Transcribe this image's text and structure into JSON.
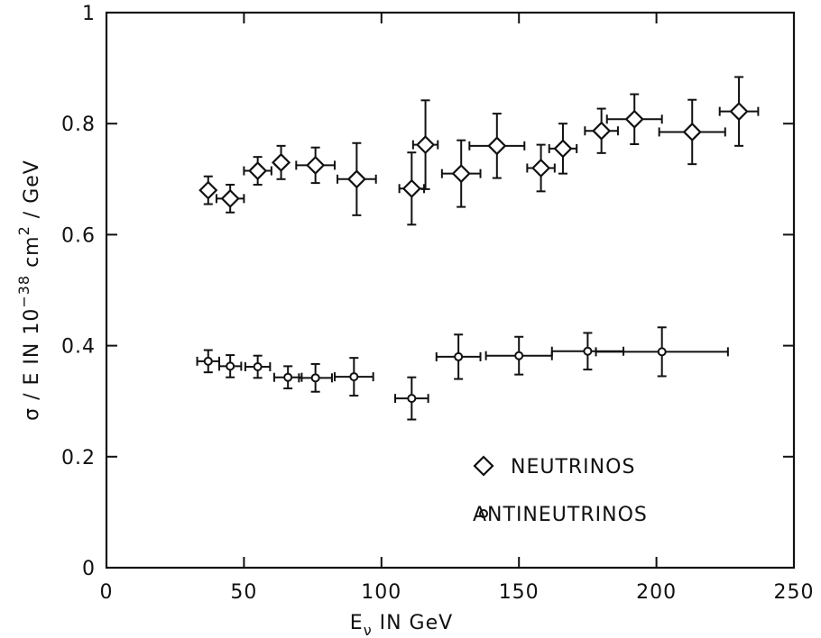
{
  "chart_data": {
    "type": "scatter",
    "title": "",
    "xlabel": "E",
    "xlabel_sub": "ν",
    "xlabel_rest": " IN GeV",
    "ylabel": "σ / E  IN  10",
    "ylabel_sup": "−38",
    "ylabel_rest": " cm",
    "ylabel_sup2": "2",
    "ylabel_tail": " / GeV",
    "xlim": [
      0,
      250
    ],
    "ylim": [
      0,
      1
    ],
    "x_ticks": [
      0,
      50,
      100,
      150,
      200,
      250
    ],
    "x_tick_labels": [
      "0",
      "50",
      "100",
      "150",
      "200",
      "250"
    ],
    "y_ticks": [
      0,
      0.2,
      0.4,
      0.6,
      0.8,
      1
    ],
    "y_tick_labels": [
      "0",
      "0.2",
      "0.4",
      "0.6",
      "0.8",
      "1"
    ],
    "grid": false,
    "legend_position": "lower-right",
    "series": [
      {
        "name": "NEUTRINOS",
        "marker": "diamond",
        "points": [
          {
            "x": 37,
            "y": 0.68,
            "xerr": 1.5,
            "yerr": 0.025
          },
          {
            "x": 45,
            "y": 0.665,
            "xerr": 5,
            "yerr": 0.025
          },
          {
            "x": 55,
            "y": 0.715,
            "xerr": 5,
            "yerr": 0.025
          },
          {
            "x": 63.5,
            "y": 0.73,
            "xerr": 1.5,
            "yerr": 0.03
          },
          {
            "x": 76,
            "y": 0.725,
            "xerr": 7,
            "yerr": 0.032
          },
          {
            "x": 91,
            "y": 0.7,
            "xerr": 7,
            "yerr": 0.065
          },
          {
            "x": 111,
            "y": 0.683,
            "xerr": 4.5,
            "yerr": 0.065
          },
          {
            "x": 116,
            "y": 0.762,
            "xerr": 4.5,
            "yerr": 0.08
          },
          {
            "x": 129,
            "y": 0.71,
            "xerr": 7,
            "yerr": 0.06
          },
          {
            "x": 142,
            "y": 0.76,
            "xerr": 10,
            "yerr": 0.058
          },
          {
            "x": 158,
            "y": 0.72,
            "xerr": 5,
            "yerr": 0.042
          },
          {
            "x": 166,
            "y": 0.755,
            "xerr": 5,
            "yerr": 0.045
          },
          {
            "x": 180,
            "y": 0.787,
            "xerr": 6,
            "yerr": 0.04
          },
          {
            "x": 192,
            "y": 0.808,
            "xerr": 10,
            "yerr": 0.045
          },
          {
            "x": 213,
            "y": 0.785,
            "xerr": 12,
            "yerr": 0.058
          },
          {
            "x": 230,
            "y": 0.822,
            "xerr": 7,
            "yerr": 0.062
          }
        ]
      },
      {
        "name": "ANTINEUTRINOS",
        "marker": "circle",
        "points": [
          {
            "x": 37,
            "y": 0.372,
            "xerr": 4,
            "yerr": 0.02
          },
          {
            "x": 45,
            "y": 0.363,
            "xerr": 4,
            "yerr": 0.02
          },
          {
            "x": 55,
            "y": 0.362,
            "xerr": 4.5,
            "yerr": 0.02
          },
          {
            "x": 66,
            "y": 0.343,
            "xerr": 5,
            "yerr": 0.02
          },
          {
            "x": 76,
            "y": 0.342,
            "xerr": 6,
            "yerr": 0.025
          },
          {
            "x": 90,
            "y": 0.344,
            "xerr": 7,
            "yerr": 0.034
          },
          {
            "x": 111,
            "y": 0.305,
            "xerr": 6,
            "yerr": 0.038
          },
          {
            "x": 128,
            "y": 0.38,
            "xerr": 8,
            "yerr": 0.04
          },
          {
            "x": 150,
            "y": 0.382,
            "xerr": 12,
            "yerr": 0.034
          },
          {
            "x": 175,
            "y": 0.39,
            "xerr": 13,
            "yerr": 0.033
          },
          {
            "x": 202,
            "y": 0.389,
            "xerr": 24,
            "yerr": 0.044
          }
        ]
      }
    ]
  }
}
